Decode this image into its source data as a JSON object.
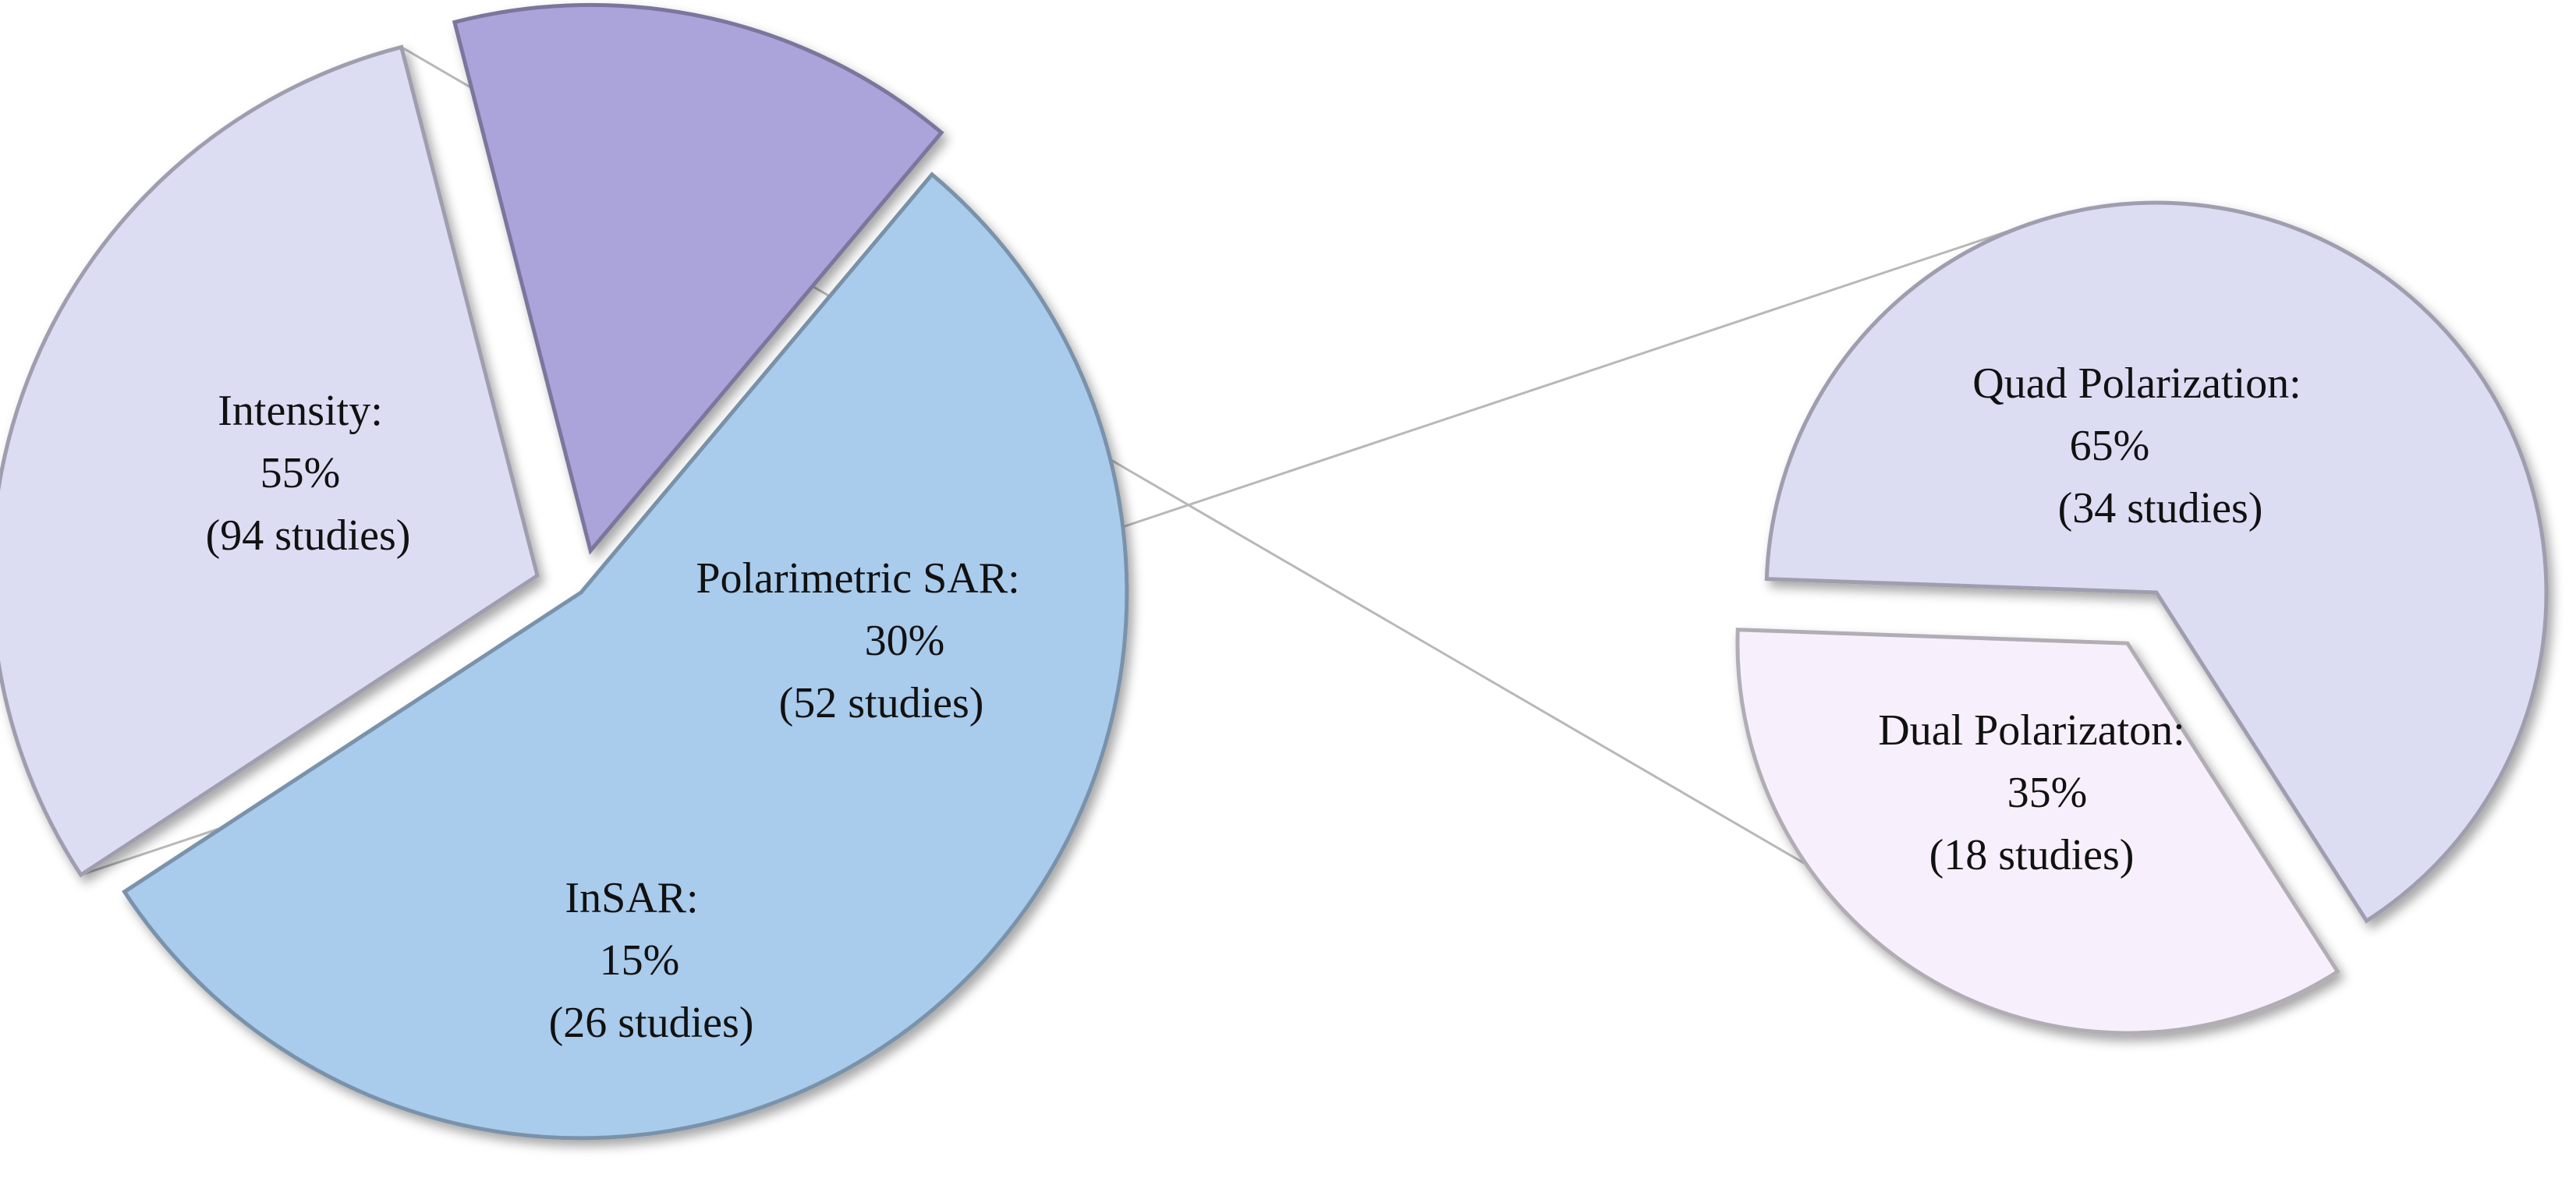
{
  "chart_data": [
    {
      "type": "pie",
      "title": "",
      "slices": [
        {
          "label": "Intensity:",
          "percent_label": "55%",
          "count_label": "(94 studies)",
          "value": 94,
          "percent": 55,
          "color": "#a9cbec"
        },
        {
          "label": "Polarimetric SAR:",
          "percent_label": "30%",
          "count_label": "(52 studies)",
          "value": 52,
          "percent": 30,
          "color": "#dcdcf3"
        },
        {
          "label": "InSAR:",
          "percent_label": "15%",
          "count_label": "(26 studies)",
          "value": 26,
          "percent": 15,
          "color": "#aba4da"
        }
      ],
      "exploded": true
    },
    {
      "type": "pie",
      "title": "",
      "breakdown_of": "Polarimetric SAR:",
      "slices": [
        {
          "label": "Quad Polarization:",
          "percent_label": "65%",
          "count_label": "(34 studies)",
          "value": 34,
          "percent": 65,
          "color": "#dcdcf3"
        },
        {
          "label": "Dual Polarizaton:",
          "percent_label": "35%",
          "count_label": "(18 studies)",
          "value": 18,
          "percent": 35,
          "color": "#f7f0fc"
        }
      ],
      "exploded": true
    }
  ]
}
